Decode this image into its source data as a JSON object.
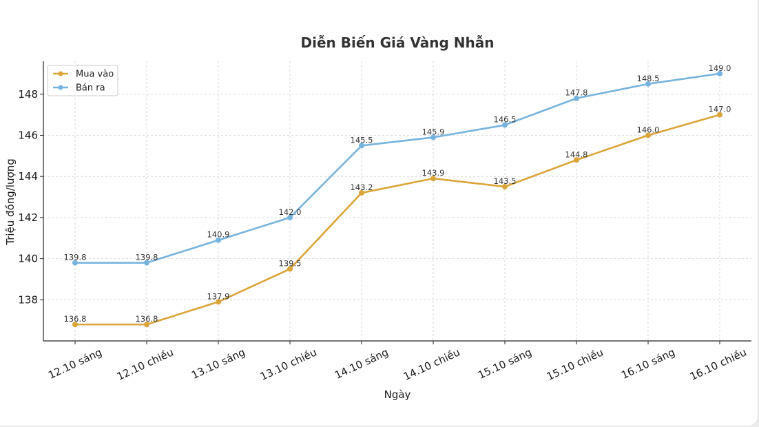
{
  "chart_data": {
    "type": "line",
    "title": "Diễn Biến Giá Vàng Nhẫn",
    "xlabel": "Ngày",
    "ylabel": "Triệu đồng/lượng",
    "categories": [
      "12.10 sáng",
      "12.10 chiều",
      "13.10 sáng",
      "13.10 chiều",
      "14.10 sáng",
      "14.10 chiều",
      "15.10 sáng",
      "15.10 chiều",
      "16.10 sáng",
      "16.10 chiều"
    ],
    "ylim": [
      136.0,
      149.6
    ],
    "yticks": [
      138,
      140,
      142,
      144,
      146,
      148
    ],
    "grid": true,
    "legend_position": "top-left",
    "series": [
      {
        "name": "Mua vào",
        "color": "#daa438",
        "values": [
          136.8,
          136.8,
          137.9,
          139.5,
          143.2,
          143.9,
          143.5,
          144.8,
          146.0,
          147.0
        ],
        "labels": [
          "136.8",
          "136.8",
          "137.9",
          "139.5",
          "143.2",
          "143.9",
          "143.5",
          "144.8",
          "146.0",
          "147.0"
        ]
      },
      {
        "name": "Bán ra",
        "color": "#76b3de",
        "values": [
          139.8,
          139.8,
          140.9,
          142.0,
          145.5,
          145.9,
          146.5,
          147.8,
          148.5,
          149.0
        ],
        "labels": [
          "139.8",
          "139.8",
          "140.9",
          "142.0",
          "145.5",
          "145.9",
          "146.5",
          "147.8",
          "148.5",
          "149.0"
        ]
      }
    ]
  }
}
